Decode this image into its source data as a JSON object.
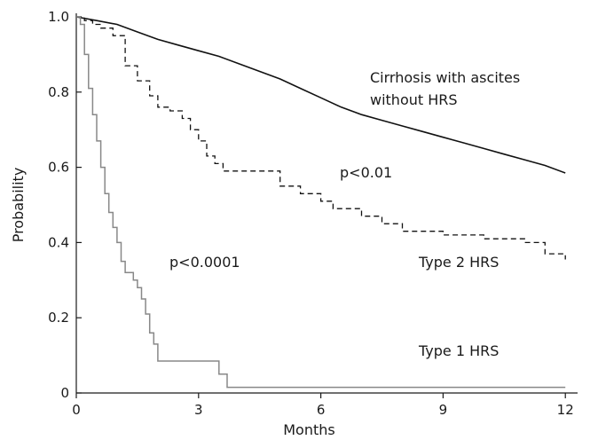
{
  "chart_data": {
    "type": "line",
    "xlabel": "Months",
    "ylabel": "Probability",
    "xlim": [
      0,
      12.3
    ],
    "ylim": [
      0,
      1.0
    ],
    "xticks": [
      0,
      3,
      6,
      9,
      12
    ],
    "yticks": [
      0,
      0.2,
      0.4,
      0.6,
      0.8,
      1.0
    ],
    "ytick_labels": [
      "0",
      "0.2",
      "0.4",
      "0.6",
      "0.8",
      "1.0"
    ],
    "grid": false,
    "series": [
      {
        "name": "Cirrhosis with ascites without HRS",
        "style": "solid",
        "color": "#111111",
        "x": [
          0,
          0.5,
          1,
          1.5,
          2,
          2.5,
          3,
          3.5,
          4,
          4.5,
          5,
          5.5,
          6,
          6.5,
          7,
          7.5,
          8,
          8.5,
          9,
          9.5,
          10,
          10.5,
          11,
          11.5,
          12
        ],
        "y": [
          1.0,
          0.99,
          0.98,
          0.96,
          0.94,
          0.925,
          0.91,
          0.895,
          0.875,
          0.855,
          0.835,
          0.81,
          0.785,
          0.76,
          0.74,
          0.725,
          0.71,
          0.695,
          0.68,
          0.665,
          0.65,
          0.635,
          0.62,
          0.605,
          0.585
        ]
      },
      {
        "name": "Type 2 HRS",
        "style": "dashed",
        "color": "#111111",
        "x": [
          0,
          0.2,
          0.4,
          0.6,
          0.9,
          1.2,
          1.5,
          1.8,
          2.0,
          2.3,
          2.6,
          2.8,
          3.0,
          3.2,
          3.4,
          3.6,
          4.0,
          4.8,
          5.0,
          5.5,
          6.0,
          6.3,
          6.5,
          7.0,
          7.5,
          8.0,
          8.5,
          9.0,
          9.5,
          10.0,
          11.0,
          11.5,
          11.8,
          12.0
        ],
        "y": [
          1.0,
          0.99,
          0.98,
          0.97,
          0.95,
          0.87,
          0.83,
          0.79,
          0.76,
          0.75,
          0.73,
          0.7,
          0.67,
          0.63,
          0.61,
          0.59,
          0.59,
          0.59,
          0.55,
          0.53,
          0.51,
          0.49,
          0.49,
          0.47,
          0.45,
          0.43,
          0.43,
          0.42,
          0.42,
          0.41,
          0.4,
          0.37,
          0.37,
          0.355
        ]
      },
      {
        "name": "Type 1 HRS",
        "style": "solid",
        "color": "#888888",
        "x": [
          0,
          0.1,
          0.2,
          0.3,
          0.4,
          0.5,
          0.6,
          0.7,
          0.8,
          0.9,
          1.0,
          1.1,
          1.2,
          1.3,
          1.4,
          1.5,
          1.6,
          1.7,
          1.8,
          1.9,
          2.0,
          3.0,
          3.5,
          3.7,
          12.0
        ],
        "y": [
          1.0,
          0.98,
          0.9,
          0.81,
          0.74,
          0.67,
          0.6,
          0.53,
          0.48,
          0.44,
          0.4,
          0.35,
          0.32,
          0.32,
          0.3,
          0.28,
          0.25,
          0.21,
          0.16,
          0.13,
          0.085,
          0.085,
          0.05,
          0.015,
          0.015
        ]
      }
    ],
    "annotations": {
      "cirrhosis_line1": "Cirrhosis with ascites",
      "cirrhosis_line2": "without HRS",
      "p_type2": "p<0.01",
      "type2_label": "Type 2 HRS",
      "p_type1": "p<0.0001",
      "type1_label": "Type 1 HRS"
    }
  }
}
